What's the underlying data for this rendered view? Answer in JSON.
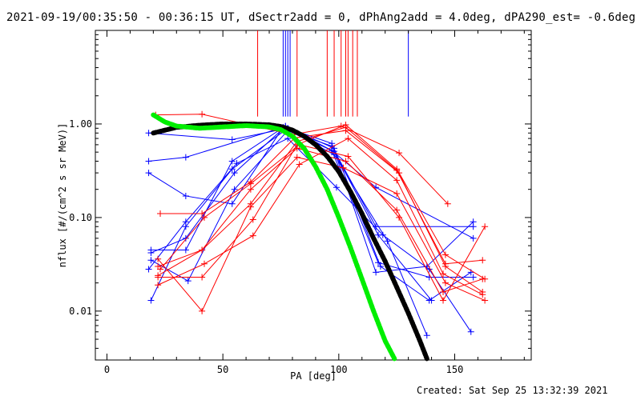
{
  "page": {
    "title": "2021-09-19/00:35:50 - 00:36:15 UT, dSectr2add = 0, dPhAng2add = 4.0deg, dPA290_est= -0.6deg",
    "footer": "Created: Sat Sep 25 13:32:39 2021"
  },
  "chart_data": {
    "type": "line",
    "xlabel": "PA [deg]",
    "ylabel": "nflux [#/(cm^2 s sr MeV)]",
    "xlim": [
      -5,
      183
    ],
    "ylim": [
      0.003,
      10
    ],
    "yscale": "log",
    "x_ticks": [
      0,
      50,
      100,
      150
    ],
    "x_tick_labels": [
      "0",
      "50",
      "100",
      "150"
    ],
    "y_ticks": [
      0.01,
      0.1,
      1.0
    ],
    "y_tick_labels": [
      "0.01",
      "0.10",
      "1.00"
    ],
    "colors": {
      "red": "#ff0000",
      "blue": "#0000ff",
      "green": "#00ee00",
      "black": "#000000"
    },
    "vertical_markers": [
      {
        "color": "#ff0000",
        "x": [
          65,
          82,
          95,
          98,
          101,
          103,
          104,
          106,
          108
        ]
      },
      {
        "color": "#0000ff",
        "x": [
          76,
          77,
          78,
          79,
          130
        ]
      }
    ],
    "series": [
      {
        "color": "#0000ff",
        "x": [
          18,
          54,
          76,
          97,
          116,
          158
        ],
        "y": [
          0.8,
          0.68,
          0.88,
          0.58,
          0.08,
          0.08
        ]
      },
      {
        "color": "#0000ff",
        "x": [
          18,
          34,
          76,
          98,
          121,
          138
        ],
        "y": [
          0.4,
          0.44,
          0.92,
          0.47,
          0.056,
          0.0055
        ]
      },
      {
        "color": "#0000ff",
        "x": [
          18,
          34,
          54,
          76,
          97,
          116,
          158
        ],
        "y": [
          0.3,
          0.17,
          0.14,
          0.92,
          0.52,
          0.21,
          0.06
        ]
      },
      {
        "color": "#0000ff",
        "x": [
          19,
          34,
          54,
          77,
          97,
          117,
          139,
          158
        ],
        "y": [
          0.045,
          0.045,
          0.4,
          0.95,
          0.52,
          0.033,
          0.023,
          0.023
        ]
      },
      {
        "color": "#0000ff",
        "x": [
          19,
          34,
          55,
          77,
          98,
          118,
          139,
          157
        ],
        "y": [
          0.042,
          0.06,
          0.3,
          0.94,
          0.55,
          0.03,
          0.013,
          0.026
        ]
      },
      {
        "color": "#0000ff",
        "x": [
          19,
          34,
          54,
          78,
          97,
          116,
          138,
          158
        ],
        "y": [
          0.013,
          0.08,
          0.33,
          0.9,
          0.62,
          0.026,
          0.03,
          0.09
        ]
      },
      {
        "color": "#0000ff",
        "x": [
          19,
          35,
          55,
          78,
          98,
          117,
          140
        ],
        "y": [
          0.035,
          0.021,
          0.2,
          0.85,
          0.51,
          0.065,
          0.013
        ]
      },
      {
        "color": "#0000ff",
        "x": [
          18,
          34,
          56,
          78,
          99,
          119,
          139,
          157
        ],
        "y": [
          0.028,
          0.09,
          0.38,
          0.7,
          0.21,
          0.065,
          0.028,
          0.006
        ]
      },
      {
        "color": "#ff0000",
        "x": [
          21,
          41,
          80,
          101,
          126,
          147
        ],
        "y": [
          1.25,
          1.27,
          0.77,
          0.95,
          0.49,
          0.14
        ]
      },
      {
        "color": "#ff0000",
        "x": [
          23,
          41,
          62,
          81,
          103,
          126,
          146,
          163
        ],
        "y": [
          0.11,
          0.11,
          0.24,
          0.71,
          0.85,
          0.3,
          0.04,
          0.022
        ]
      },
      {
        "color": "#ff0000",
        "x": [
          22,
          41,
          62,
          82,
          103,
          125,
          146,
          162
        ],
        "y": [
          0.03,
          0.045,
          0.14,
          0.65,
          0.92,
          0.32,
          0.032,
          0.035
        ]
      },
      {
        "color": "#ff0000",
        "x": [
          22,
          41,
          63,
          82,
          103,
          125,
          146,
          162
        ],
        "y": [
          0.023,
          0.023,
          0.095,
          0.6,
          0.98,
          0.33,
          0.03,
          0.016
        ]
      },
      {
        "color": "#ff0000",
        "x": [
          22,
          42,
          63,
          83,
          104,
          125,
          145,
          162
        ],
        "y": [
          0.019,
          0.032,
          0.064,
          0.37,
          0.7,
          0.25,
          0.025,
          0.015
        ]
      },
      {
        "color": "#ff0000",
        "x": [
          22,
          41,
          62,
          82,
          102,
          125,
          146,
          163
        ],
        "y": [
          0.036,
          0.01,
          0.13,
          0.44,
          0.34,
          0.18,
          0.02,
          0.013
        ]
      },
      {
        "color": "#ff0000",
        "x": [
          23,
          42,
          62,
          83,
          104,
          126,
          145,
          163
        ],
        "y": [
          0.028,
          0.1,
          0.23,
          0.6,
          0.45,
          0.1,
          0.013,
          0.08
        ]
      },
      {
        "color": "#ff0000",
        "x": [
          22,
          41,
          62,
          82,
          103,
          125,
          145,
          162
        ],
        "y": [
          0.024,
          0.045,
          0.2,
          0.55,
          0.4,
          0.12,
          0.016,
          0.022
        ]
      }
    ],
    "fits": [
      {
        "color": "#000000",
        "style": "thick-dotted",
        "x": [
          20,
          30,
          40,
          50,
          60,
          70,
          75,
          80,
          85,
          90,
          95,
          100,
          105,
          110,
          115,
          120,
          125,
          130,
          135,
          138
        ],
        "y": [
          0.8,
          0.92,
          0.97,
          1.0,
          1.0,
          0.98,
          0.94,
          0.86,
          0.74,
          0.6,
          0.45,
          0.31,
          0.19,
          0.11,
          0.06,
          0.034,
          0.018,
          0.0095,
          0.0048,
          0.0031
        ]
      },
      {
        "color": "#00ee00",
        "style": "thick-dotted",
        "x": [
          20,
          25,
          30,
          40,
          50,
          60,
          70,
          75,
          80,
          85,
          90,
          95,
          100,
          105,
          110,
          115,
          120,
          124
        ],
        "y": [
          1.25,
          1.05,
          0.95,
          0.9,
          0.93,
          0.96,
          0.93,
          0.87,
          0.74,
          0.55,
          0.35,
          0.2,
          0.1,
          0.048,
          0.022,
          0.01,
          0.0048,
          0.0031
        ]
      }
    ]
  }
}
